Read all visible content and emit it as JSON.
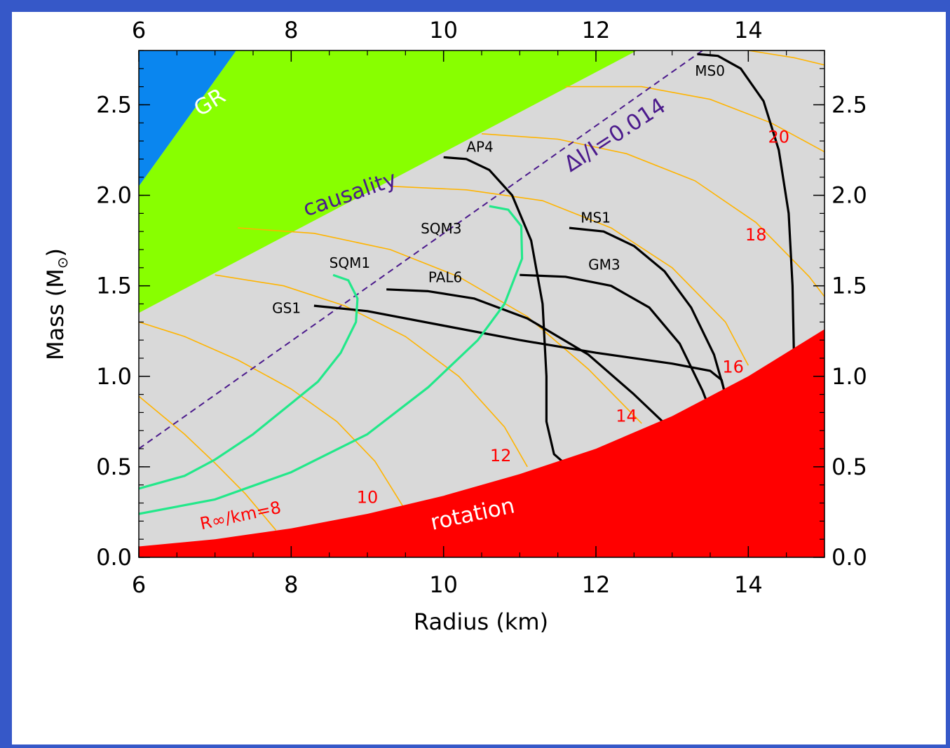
{
  "chart_data": {
    "type": "line",
    "xlabel": "Radius (km)",
    "ylabel": "Mass (M",
    "ylabel_symbol": "⊙",
    "ylabel_close": ")",
    "xlim": [
      6,
      15
    ],
    "ylim": [
      0,
      2.8
    ],
    "x_ticks": [
      6,
      8,
      10,
      12,
      14
    ],
    "x_tick_labels": [
      "6",
      "8",
      "10",
      "12",
      "14"
    ],
    "y_ticks": [
      0,
      0.5,
      1,
      1.5,
      2,
      2.5
    ],
    "y_tick_labels": [
      "0.0",
      "0.5",
      "1.0",
      "1.5",
      "2.0",
      "2.5"
    ],
    "colors": {
      "background": "#d9d9d9",
      "gr": "#0a86ef",
      "causality": "#88ff00",
      "rotation": "#ff0000",
      "iso_radius": "#ffb400",
      "strange_quark": "#22e88a",
      "normal_star": "#000000",
      "delta_line": "#4b1a8c",
      "iso_label": "#ff0000"
    },
    "regions": [
      {
        "name": "GR",
        "label": "GR",
        "polygon": [
          [
            6,
            2.05
          ],
          [
            7.28,
            2.8
          ],
          [
            6,
            2.8
          ]
        ]
      },
      {
        "name": "causality",
        "label": "causality",
        "polygon": [
          [
            6,
            1.35
          ],
          [
            12.54,
            2.8
          ],
          [
            7.28,
            2.8
          ],
          [
            6,
            2.05
          ]
        ]
      },
      {
        "name": "rotation",
        "label": "rotation",
        "curve": [
          [
            6,
            0.06
          ],
          [
            7,
            0.1
          ],
          [
            8,
            0.16
          ],
          [
            9,
            0.24
          ],
          [
            10,
            0.34
          ],
          [
            11,
            0.46
          ],
          [
            12,
            0.6
          ],
          [
            13,
            0.78
          ],
          [
            14,
            1.0
          ],
          [
            15,
            1.26
          ]
        ]
      }
    ],
    "delta_line": {
      "label": "ΔI/I=0.014",
      "points": [
        [
          6,
          0.6
        ],
        [
          13.4,
          2.8
        ]
      ]
    },
    "iso_radius_prefix": "R∞/km=",
    "iso_radius_curves": [
      {
        "r_inf": 8,
        "label": "8",
        "points": [
          [
            6,
            0.89
          ],
          [
            6.6,
            0.68
          ],
          [
            7,
            0.52
          ],
          [
            7.4,
            0.35
          ],
          [
            7.8,
            0.15
          ]
        ]
      },
      {
        "r_inf": 10,
        "label": "10",
        "points": [
          [
            6,
            1.3
          ],
          [
            6.6,
            1.22
          ],
          [
            7.3,
            1.09
          ],
          [
            8,
            0.93
          ],
          [
            8.6,
            0.75
          ],
          [
            9.1,
            0.53
          ],
          [
            9.5,
            0.26
          ]
        ]
      },
      {
        "r_inf": 12,
        "label": "12",
        "points": [
          [
            7,
            1.56
          ],
          [
            7.9,
            1.5
          ],
          [
            8.7,
            1.39
          ],
          [
            9.5,
            1.22
          ],
          [
            10.2,
            1.0
          ],
          [
            10.8,
            0.72
          ],
          [
            11.1,
            0.5
          ]
        ]
      },
      {
        "r_inf": 14,
        "label": "14",
        "points": [
          [
            7.3,
            1.82
          ],
          [
            8.3,
            1.79
          ],
          [
            9.3,
            1.7
          ],
          [
            10.2,
            1.55
          ],
          [
            11.1,
            1.33
          ],
          [
            11.9,
            1.04
          ],
          [
            12.6,
            0.74
          ]
        ]
      },
      {
        "r_inf": 16,
        "label": "16",
        "points": [
          [
            9.3,
            2.05
          ],
          [
            10.3,
            2.03
          ],
          [
            11.3,
            1.97
          ],
          [
            12.2,
            1.82
          ],
          [
            13,
            1.6
          ],
          [
            13.7,
            1.3
          ],
          [
            14.0,
            1.06
          ]
        ]
      },
      {
        "r_inf": 18,
        "label": "18",
        "points": [
          [
            10.5,
            2.34
          ],
          [
            11.5,
            2.31
          ],
          [
            12.4,
            2.23
          ],
          [
            13.3,
            2.08
          ],
          [
            14.1,
            1.85
          ],
          [
            14.8,
            1.55
          ],
          [
            15,
            1.44
          ]
        ]
      },
      {
        "r_inf": 20,
        "label": "20",
        "points": [
          [
            11.6,
            2.6
          ],
          [
            12.6,
            2.6
          ],
          [
            13.5,
            2.53
          ],
          [
            14.3,
            2.4
          ],
          [
            15,
            2.24
          ]
        ]
      },
      {
        "r_inf": 22,
        "label": "",
        "points": [
          [
            14.0,
            2.8
          ],
          [
            14.6,
            2.76
          ],
          [
            15,
            2.72
          ]
        ]
      }
    ],
    "series": [
      {
        "name": "MS0",
        "kind": "normal",
        "points": [
          [
            13.33,
            2.78
          ],
          [
            13.6,
            2.77
          ],
          [
            13.9,
            2.7
          ],
          [
            14.2,
            2.52
          ],
          [
            14.4,
            2.25
          ],
          [
            14.53,
            1.9
          ],
          [
            14.58,
            1.5
          ],
          [
            14.6,
            1.1
          ],
          [
            14.57,
            0.75
          ],
          [
            14.55,
            0.6
          ],
          [
            14.6,
            0.45
          ],
          [
            14.75,
            0.37
          ],
          [
            15,
            0.32
          ]
        ]
      },
      {
        "name": "MS1",
        "kind": "normal",
        "points": [
          [
            11.65,
            1.82
          ],
          [
            12.1,
            1.8
          ],
          [
            12.5,
            1.72
          ],
          [
            12.9,
            1.58
          ],
          [
            13.25,
            1.38
          ],
          [
            13.55,
            1.12
          ],
          [
            13.7,
            0.9
          ],
          [
            13.8,
            0.7
          ],
          [
            13.9,
            0.55
          ],
          [
            14.2,
            0.43
          ],
          [
            14.6,
            0.36
          ],
          [
            15,
            0.32
          ]
        ]
      },
      {
        "name": "AP4",
        "kind": "normal",
        "points": [
          [
            10,
            2.21
          ],
          [
            10.3,
            2.2
          ],
          [
            10.6,
            2.14
          ],
          [
            10.9,
            2.0
          ],
          [
            11.15,
            1.75
          ],
          [
            11.3,
            1.4
          ],
          [
            11.35,
            1.0
          ],
          [
            11.35,
            0.75
          ],
          [
            11.45,
            0.57
          ],
          [
            11.75,
            0.46
          ],
          [
            12.5,
            0.3
          ],
          [
            13.5,
            0.24
          ],
          [
            15,
            0.2
          ]
        ]
      },
      {
        "name": "GM3",
        "kind": "normal",
        "points": [
          [
            11,
            1.56
          ],
          [
            11.6,
            1.55
          ],
          [
            12.2,
            1.5
          ],
          [
            12.7,
            1.38
          ],
          [
            13.1,
            1.18
          ],
          [
            13.4,
            0.92
          ],
          [
            13.6,
            0.7
          ],
          [
            13.75,
            0.56
          ],
          [
            14.2,
            0.44
          ],
          [
            15,
            0.33
          ]
        ]
      },
      {
        "name": "PAL6",
        "kind": "normal",
        "points": [
          [
            9.25,
            1.48
          ],
          [
            9.8,
            1.47
          ],
          [
            10.4,
            1.43
          ],
          [
            11.1,
            1.32
          ],
          [
            11.9,
            1.12
          ],
          [
            12.5,
            0.9
          ],
          [
            13,
            0.7
          ],
          [
            13.4,
            0.6
          ],
          [
            14,
            0.47
          ],
          [
            15,
            0.34
          ]
        ]
      },
      {
        "name": "GS1",
        "kind": "normal",
        "points": [
          [
            8.3,
            1.39
          ],
          [
            9,
            1.36
          ],
          [
            10,
            1.28
          ],
          [
            11,
            1.2
          ],
          [
            12,
            1.13
          ],
          [
            13,
            1.07
          ],
          [
            13.5,
            1.03
          ],
          [
            13.65,
            0.98
          ],
          [
            13.75,
            0.8
          ],
          [
            13.85,
            0.62
          ],
          [
            14.2,
            0.45
          ],
          [
            15,
            0.33
          ]
        ]
      },
      {
        "name": "SQM1",
        "kind": "strange",
        "points": [
          [
            8.55,
            1.56
          ],
          [
            8.75,
            1.53
          ],
          [
            8.87,
            1.43
          ],
          [
            8.85,
            1.3
          ],
          [
            8.65,
            1.13
          ],
          [
            8.35,
            0.97
          ],
          [
            8.0,
            0.85
          ],
          [
            7.5,
            0.68
          ],
          [
            7.0,
            0.54
          ],
          [
            6.6,
            0.45
          ],
          [
            6,
            0.38
          ]
        ]
      },
      {
        "name": "SQM3",
        "kind": "strange",
        "points": [
          [
            10.6,
            1.94
          ],
          [
            10.85,
            1.92
          ],
          [
            11.02,
            1.83
          ],
          [
            11.03,
            1.65
          ],
          [
            10.8,
            1.4
          ],
          [
            10.45,
            1.2
          ],
          [
            9.8,
            0.94
          ],
          [
            9.0,
            0.68
          ],
          [
            8.0,
            0.47
          ],
          [
            7.0,
            0.32
          ],
          [
            6,
            0.24
          ]
        ]
      }
    ],
    "series_labels": [
      {
        "text": "MS0",
        "x": 13.3,
        "y": 2.66
      },
      {
        "text": "MS1",
        "x": 11.8,
        "y": 1.85
      },
      {
        "text": "AP4",
        "x": 10.3,
        "y": 2.24
      },
      {
        "text": "GM3",
        "x": 11.9,
        "y": 1.59
      },
      {
        "text": "PAL6",
        "x": 9.8,
        "y": 1.52
      },
      {
        "text": "GS1",
        "x": 7.75,
        "y": 1.35
      },
      {
        "text": "SQM1",
        "x": 8.5,
        "y": 1.6
      },
      {
        "text": "SQM3",
        "x": 9.7,
        "y": 1.79
      }
    ]
  }
}
